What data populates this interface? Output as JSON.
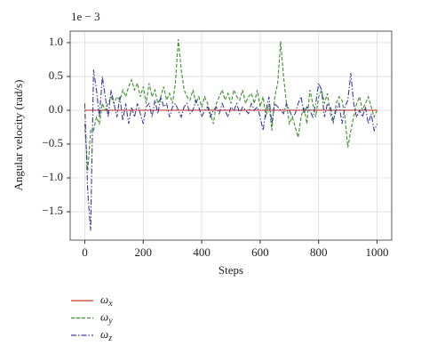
{
  "chart_data": {
    "type": "line",
    "x_label": "Steps",
    "y_label": "Angular velocity (rad/s)",
    "y_offset_label": "1e − 3",
    "x": [
      0,
      10,
      20,
      30,
      40,
      50,
      60,
      70,
      80,
      90,
      100,
      110,
      120,
      130,
      140,
      150,
      160,
      170,
      180,
      190,
      200,
      210,
      220,
      230,
      240,
      250,
      260,
      270,
      280,
      290,
      300,
      310,
      320,
      330,
      340,
      350,
      360,
      370,
      380,
      390,
      400,
      410,
      420,
      430,
      440,
      450,
      460,
      470,
      480,
      490,
      500,
      510,
      520,
      530,
      540,
      550,
      560,
      570,
      580,
      590,
      600,
      610,
      620,
      630,
      640,
      650,
      660,
      670,
      680,
      690,
      700,
      710,
      720,
      730,
      740,
      750,
      760,
      770,
      780,
      790,
      800,
      810,
      820,
      830,
      840,
      850,
      860,
      870,
      880,
      890,
      900,
      910,
      920,
      930,
      940,
      950,
      960,
      970,
      980,
      990,
      1000
    ],
    "series": [
      {
        "name": "ωx",
        "color": "#c8392f",
        "dash": "",
        "values": [
          0,
          0,
          0,
          0,
          0,
          0,
          0,
          0,
          0,
          0,
          0,
          0,
          0,
          0,
          0,
          0,
          0,
          0,
          0,
          0,
          0,
          0,
          0,
          0,
          0,
          0,
          0,
          0,
          0,
          0,
          0,
          0,
          0,
          0,
          0,
          0,
          0,
          0,
          0,
          0,
          0,
          0,
          0,
          0,
          0,
          0,
          0,
          0,
          0,
          0,
          0,
          0,
          0,
          0,
          0,
          0,
          0,
          0,
          0,
          0,
          0,
          0,
          0,
          0,
          0,
          0,
          0,
          0,
          0,
          0,
          0,
          0,
          0,
          0,
          0,
          0,
          0,
          0,
          0,
          0,
          0,
          0,
          0,
          0,
          0,
          0,
          0,
          0,
          0,
          0,
          0,
          0,
          0,
          0,
          0,
          0,
          0,
          0,
          0,
          0,
          0
        ]
      },
      {
        "name": "ωy",
        "color": "#3a8f2a",
        "dash": "4 2",
        "values": [
          -0.2,
          -0.9,
          -0.3,
          -0.3,
          -0.1,
          -0.2,
          0.1,
          0.0,
          0.1,
          0.2,
          0.1,
          0.2,
          0.15,
          0.3,
          0.2,
          0.35,
          0.45,
          0.3,
          0.4,
          0.2,
          0.35,
          0.1,
          0.4,
          0.2,
          0.3,
          0.1,
          0.2,
          0.35,
          0.15,
          0.25,
          0.1,
          0.4,
          1.05,
          0.6,
          0.3,
          0.2,
          0.15,
          0.3,
          0.1,
          0.2,
          0.05,
          0.2,
          0.1,
          -0.05,
          -0.2,
          0.1,
          0.2,
          0.3,
          0.15,
          0.25,
          0.1,
          0.3,
          0.2,
          0.15,
          0.3,
          0.1,
          0.2,
          0.25,
          0.1,
          0.3,
          0.05,
          0.2,
          -0.1,
          0.1,
          -0.3,
          0.2,
          0.4,
          1.02,
          0.5,
          0.1,
          -0.2,
          -0.1,
          -0.25,
          -0.4,
          -0.1,
          0.05,
          -0.2,
          0.3,
          0.1,
          -0.1,
          0.2,
          0.3,
          0.1,
          0.25,
          -0.05,
          -0.2,
          0.1,
          0.2,
          0.15,
          -0.1,
          -0.55,
          -0.3,
          -0.1,
          0.1,
          0.2,
          0.0,
          0.1,
          0.2,
          0.05,
          -0.1,
          0.0
        ]
      },
      {
        "name": "ωz",
        "color": "#3b3ba3",
        "dash": "6 2 1.5 2",
        "values": [
          0.1,
          -1.2,
          -1.78,
          0.6,
          0.3,
          -0.1,
          0.5,
          0.2,
          -0.1,
          0.3,
          0.1,
          -0.1,
          0.2,
          -0.15,
          0.1,
          -0.2,
          0.05,
          -0.1,
          0.1,
          -0.05,
          -0.2,
          0.05,
          0.1,
          -0.1,
          0.15,
          -0.05,
          0.2,
          0.05,
          0.1,
          -0.1,
          0.05,
          0.1,
          0.0,
          -0.1,
          0.05,
          0.1,
          -0.05,
          0.0,
          0.15,
          0.05,
          -0.1,
          0.0,
          0.05,
          -0.1,
          0.0,
          0.05,
          -0.05,
          0.1,
          0.0,
          -0.1,
          0.05,
          0.0,
          0.1,
          -0.05,
          0.05,
          0.0,
          -0.05,
          0.1,
          0.0,
          0.05,
          -0.1,
          -0.3,
          0.0,
          0.2,
          -0.2,
          0.1,
          0.05,
          0.0,
          -0.05,
          0.1,
          0.0,
          -0.1,
          -0.05,
          0.1,
          0.2,
          -0.05,
          0.05,
          0.0,
          -0.1,
          0.1,
          0.4,
          0.3,
          -0.1,
          0.1,
          0.05,
          -0.15,
          0.0,
          0.1,
          -0.2,
          0.05,
          0.15,
          0.55,
          0.1,
          -0.1,
          0.0,
          -0.1,
          0.05,
          -0.2,
          -0.05,
          -0.3,
          -0.2
        ]
      }
    ],
    "xlim": [
      -50,
      1050
    ],
    "ylim": [
      -1.92,
      1.17
    ],
    "xticks": [
      0,
      200,
      400,
      600,
      800,
      1000
    ],
    "yticks": [
      {
        "value": -1.5,
        "label": "−1.5"
      },
      {
        "value": -1,
        "label": "−1.0"
      },
      {
        "value": -0.5,
        "label": "−0.5"
      },
      {
        "value": 0,
        "label": "0.0"
      },
      0.5,
      {
        "value": 1,
        "label": "1.0"
      }
    ],
    "grid": true
  }
}
